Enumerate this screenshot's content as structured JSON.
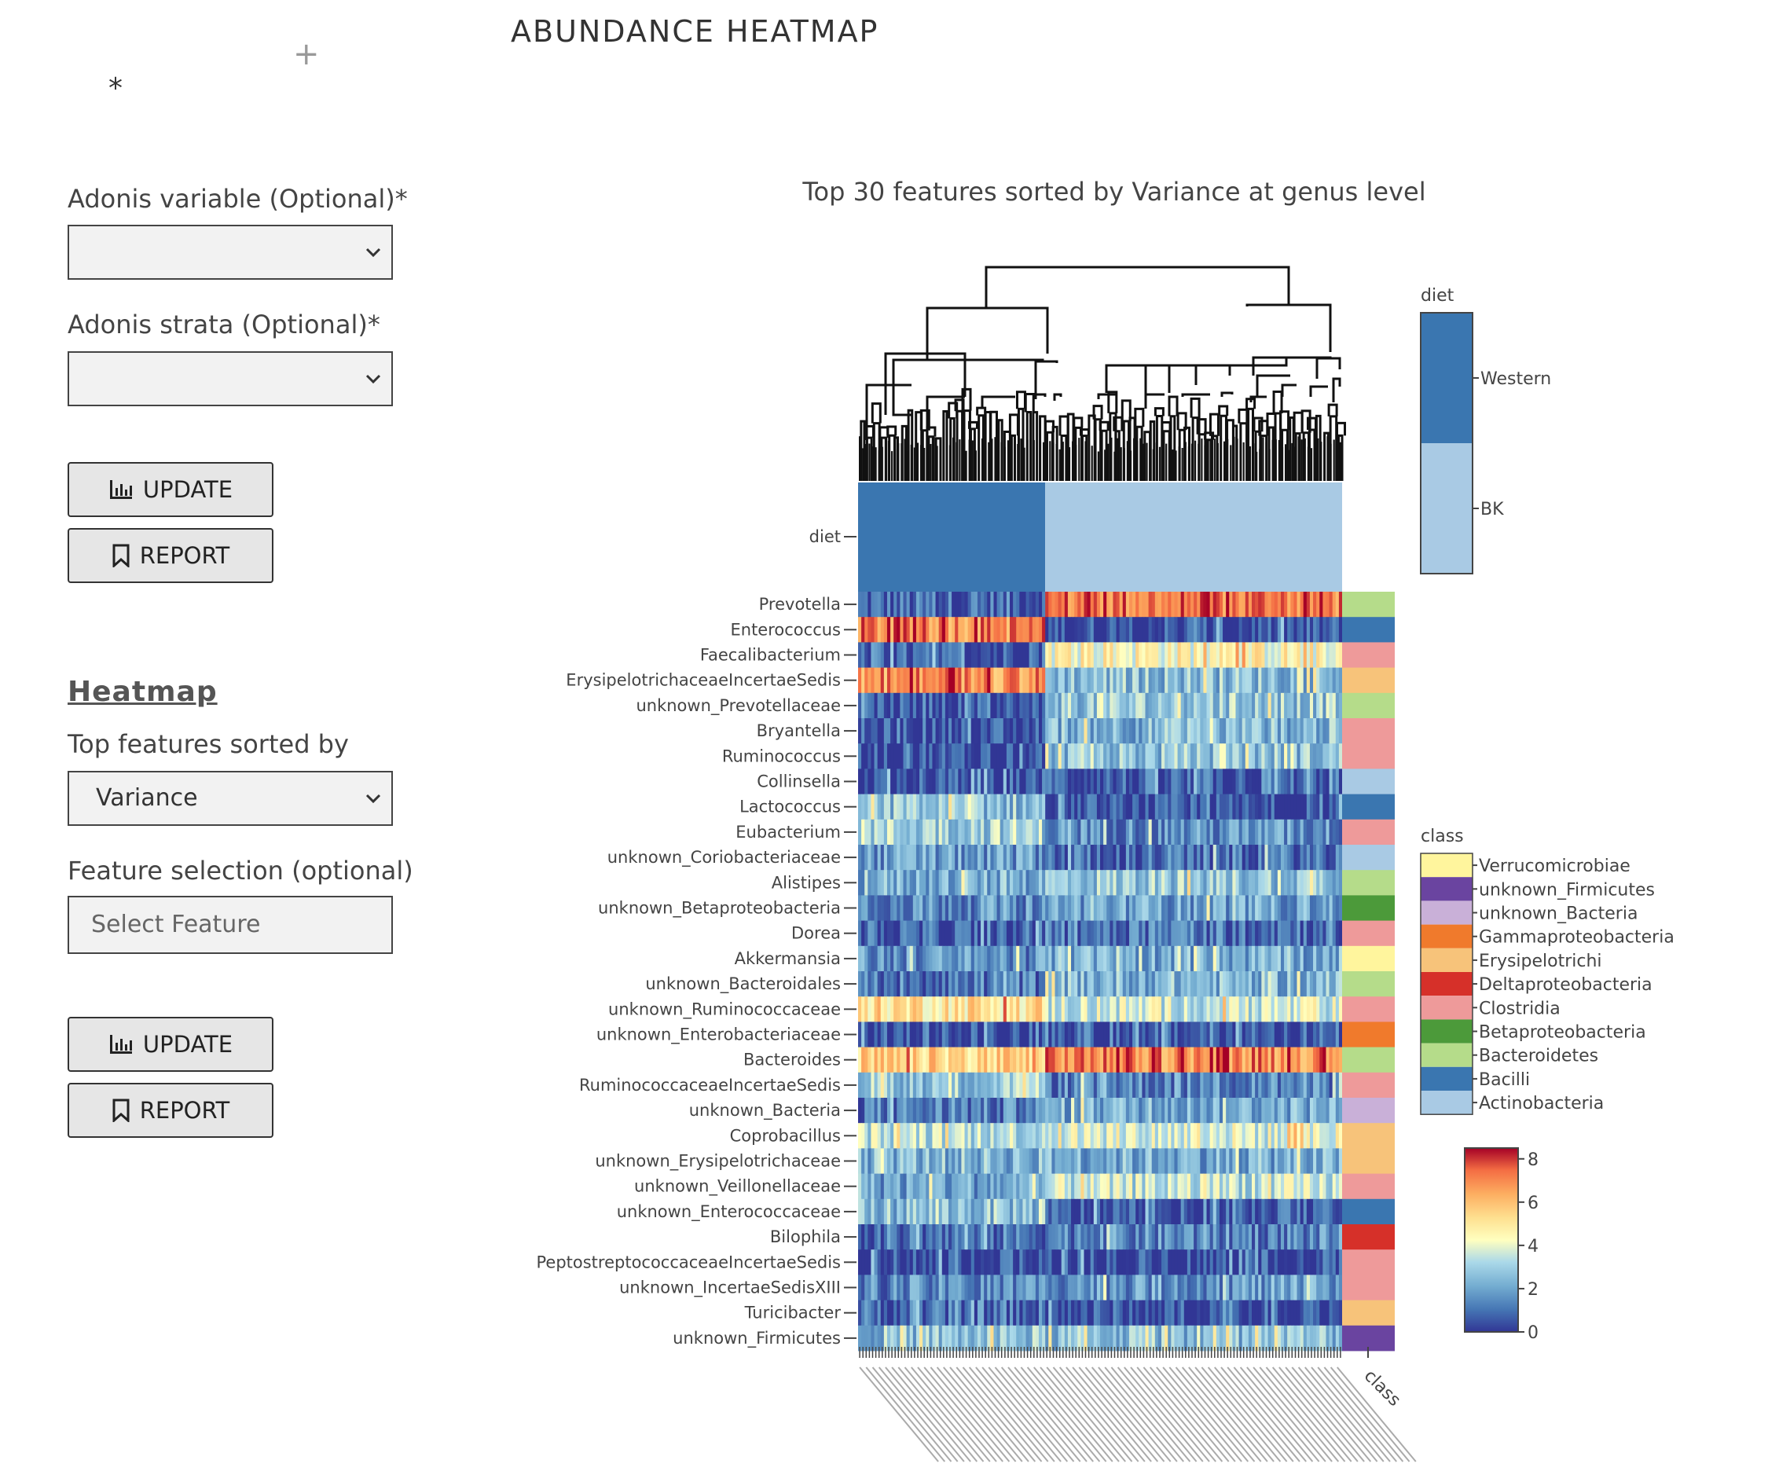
{
  "page": {
    "title": "ABUNDANCE HEATMAP",
    "plus_glyph": "+",
    "star_glyph": "*"
  },
  "form": {
    "adonis_variable_label": "Adonis variable (Optional)*",
    "adonis_variable_value": "",
    "adonis_strata_label": "Adonis strata (Optional)*",
    "adonis_strata_value": "",
    "update_label": "UPDATE",
    "report_label": "REPORT",
    "heatmap_heading": "Heatmap",
    "sort_label": "Top features sorted by",
    "sort_value": "Variance",
    "feature_label": "Feature selection (optional)",
    "feature_placeholder": "Select Feature",
    "icons": {
      "update": "bar-chart-icon",
      "report": "bookmark-icon",
      "dropdown": "chevron-down-icon"
    }
  },
  "chart_data": {
    "type": "heatmap",
    "title": "Top 30 features sorted by Variance at genus level",
    "rows": [
      {
        "name": "Prevotella",
        "class": "Bacteroidetes",
        "left": 0.8,
        "right": 7.2
      },
      {
        "name": "Enterococcus",
        "class": "Bacilli",
        "left": 7.0,
        "right": 0.4
      },
      {
        "name": "Faecalibacterium",
        "class": "Clostridia",
        "left": 0.5,
        "right": 4.5
      },
      {
        "name": "ErysipelotrichaceaeIncertaeSedis",
        "class": "Erysipelotrichi",
        "left": 6.8,
        "right": 2.6
      },
      {
        "name": "unknown_Prevotellaceae",
        "class": "Bacteroidetes",
        "left": 0.3,
        "right": 2.8
      },
      {
        "name": "Bryantella",
        "class": "Clostridia",
        "left": 0.3,
        "right": 2.4
      },
      {
        "name": "Ruminococcus",
        "class": "Clostridia",
        "left": 0.4,
        "right": 2.6
      },
      {
        "name": "Collinsella",
        "class": "Actinobacteria",
        "left": 0.4,
        "right": 0.6
      },
      {
        "name": "Lactococcus",
        "class": "Bacilli",
        "left": 2.6,
        "right": 0.2
      },
      {
        "name": "Eubacterium",
        "class": "Clostridia",
        "left": 3.0,
        "right": 1.6
      },
      {
        "name": "unknown_Coriobacteriaceae",
        "class": "Actinobacteria",
        "left": 1.8,
        "right": 1.0
      },
      {
        "name": "Alistipes",
        "class": "Bacteroidetes",
        "left": 2.2,
        "right": 2.8
      },
      {
        "name": "unknown_Betaproteobacteria",
        "class": "Betaproteobacteria",
        "left": 1.6,
        "right": 2.0
      },
      {
        "name": "Dorea",
        "class": "Clostridia",
        "left": 0.6,
        "right": 1.2
      },
      {
        "name": "Akkermansia",
        "class": "Verrucomicrobiae",
        "left": 1.6,
        "right": 2.2
      },
      {
        "name": "unknown_Bacteroidales",
        "class": "Bacteroidetes",
        "left": 1.2,
        "right": 2.4
      },
      {
        "name": "unknown_Ruminococcaceae",
        "class": "Clostridia",
        "left": 5.2,
        "right": 3.6
      },
      {
        "name": "unknown_Enterobacteriaceae",
        "class": "Gammaproteobacteria",
        "left": 0.3,
        "right": 0.6
      },
      {
        "name": "Bacteroides",
        "class": "Bacteroidetes",
        "left": 5.4,
        "right": 7.0
      },
      {
        "name": "RuminococcaceaeIncertaeSedis",
        "class": "Clostridia",
        "left": 2.8,
        "right": 1.4
      },
      {
        "name": "unknown_Bacteria",
        "class": "unknown_Bacteria",
        "left": 1.2,
        "right": 2.2
      },
      {
        "name": "Coprobacillus",
        "class": "Erysipelotrichi",
        "left": 3.4,
        "right": 3.8
      },
      {
        "name": "unknown_Erysipelotrichaceae",
        "class": "Erysipelotrichi",
        "left": 2.4,
        "right": 2.2
      },
      {
        "name": "unknown_Veillonellaceae",
        "class": "Clostridia",
        "left": 2.0,
        "right": 3.4
      },
      {
        "name": "unknown_Enterococcaceae",
        "class": "Bacilli",
        "left": 2.6,
        "right": 0.4
      },
      {
        "name": "Bilophila",
        "class": "Deltaproteobacteria",
        "left": 1.0,
        "right": 1.4
      },
      {
        "name": "PeptostreptococcaceaeIncertaeSedis",
        "class": "Clostridia",
        "left": 0.3,
        "right": 0.3
      },
      {
        "name": "unknown_IncertaeSedisXIII",
        "class": "Clostridia",
        "left": 1.4,
        "right": 1.8
      },
      {
        "name": "Turicibacter",
        "class": "Erysipelotrichi",
        "left": 0.8,
        "right": 0.4
      },
      {
        "name": "unknown_Firmicutes",
        "class": "unknown_Firmicutes",
        "left": 2.6,
        "right": 2.6
      }
    ],
    "diet_annotation": {
      "label": "diet",
      "left_group": "Western",
      "right_group": "BK",
      "split_fraction": 0.385
    },
    "diet_legend": {
      "title": "diet",
      "entries": [
        {
          "name": "Western",
          "color": "#3a76b0"
        },
        {
          "name": "BK",
          "color": "#a9cae4"
        }
      ]
    },
    "class_legend": {
      "title": "class",
      "entries": [
        {
          "name": "Verrucomicrobiae",
          "color": "#fff59d"
        },
        {
          "name": "unknown_Firmicutes",
          "color": "#6a44a0"
        },
        {
          "name": "unknown_Bacteria",
          "color": "#c9b0d8"
        },
        {
          "name": "Gammaproteobacteria",
          "color": "#f07a2c"
        },
        {
          "name": "Erysipelotrichi",
          "color": "#f7c37a"
        },
        {
          "name": "Deltaproteobacteria",
          "color": "#d63029"
        },
        {
          "name": "Clostridia",
          "color": "#ee9a9a"
        },
        {
          "name": "Betaproteobacteria",
          "color": "#4c9a3a"
        },
        {
          "name": "Bacteroidetes",
          "color": "#b5dc8a"
        },
        {
          "name": "Bacilli",
          "color": "#3a76b0"
        },
        {
          "name": "Actinobacteria",
          "color": "#a9cae4"
        }
      ]
    },
    "colorbar": {
      "min": 0,
      "max": 8.5,
      "ticks": [
        "0",
        "2",
        "4",
        "6",
        "8"
      ]
    },
    "class_column_label": "class"
  }
}
